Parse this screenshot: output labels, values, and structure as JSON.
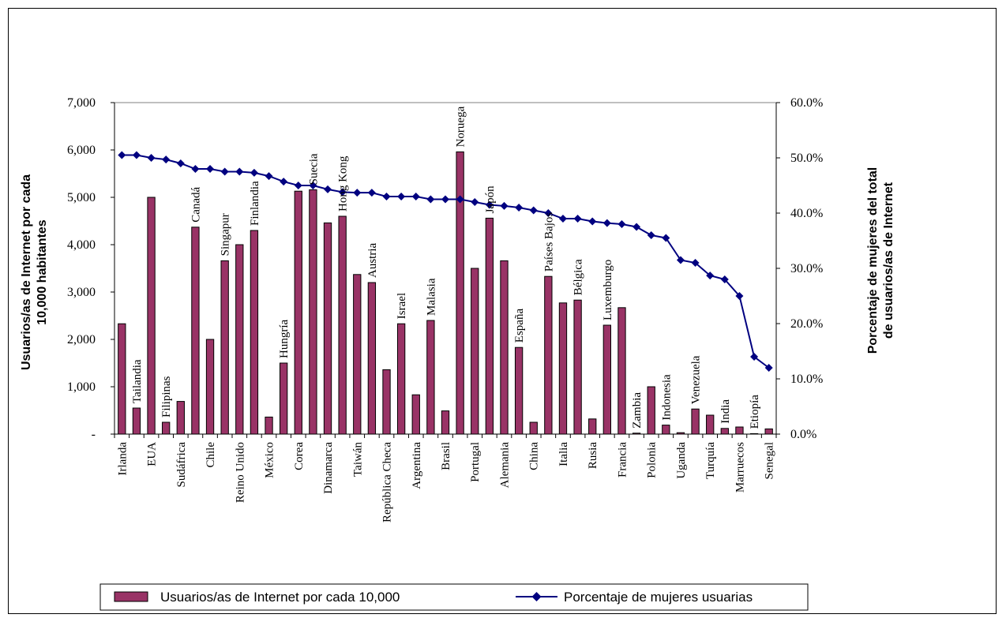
{
  "colors": {
    "bar": "#993366",
    "bar_stroke": "#000000",
    "line": "#000080",
    "axis": "#000000",
    "grid": "#808080"
  },
  "chart_data": {
    "type": "bar",
    "title": "",
    "ylabel": "Usuarios/as de Internet por cada 10,000 habitantes",
    "y2label": "Porcentaje de mujeres del total de usuarios/as de Internet",
    "ylim": [
      0,
      7000
    ],
    "y2lim": [
      0,
      0.6
    ],
    "y_ticks": [
      "-",
      "1,000",
      "2,000",
      "3,000",
      "4,000",
      "5,000",
      "6,000",
      "7,000"
    ],
    "y2_ticks": [
      "0.0%",
      "10.0%",
      "20.0%",
      "30.0%",
      "40.0%",
      "50.0%",
      "60.0%"
    ],
    "grid": "top-line-only",
    "legend_position": "bottom",
    "categories": [
      "Irlanda",
      "Tailandia",
      "EUA",
      "Filipinas",
      "Sudáfrica",
      "Canadá",
      "Chile",
      "Singapur",
      "Reino Unido",
      "Finlandia",
      "México",
      "Hungría",
      "Corea",
      "Suecia",
      "Dinamarca",
      "Hong Kong",
      "Taiwán",
      "Austria",
      "República Checa",
      "Israel",
      "Argentina",
      "Malasia",
      "Brasil",
      "Noruega",
      "Portugal",
      "Japón",
      "Alemania",
      "España",
      "China",
      "Países Bajos",
      "Italia",
      "Bélgica",
      "Rusia",
      "Luxemburgo",
      "Francia",
      "Zambia",
      "Polonia",
      "Indonesia",
      "Uganda",
      "Venezuela",
      "Turquía",
      "India",
      "Marruecos",
      "Etiopía",
      "Senegal"
    ],
    "label_position": [
      "below",
      "above",
      "below",
      "above",
      "below",
      "above",
      "below",
      "above",
      "below",
      "above",
      "below",
      "above",
      "below",
      "above",
      "below",
      "above",
      "below",
      "above",
      "below",
      "above",
      "below",
      "above",
      "below",
      "above",
      "below",
      "above",
      "below",
      "above",
      "below",
      "above",
      "below",
      "above",
      "below",
      "above",
      "below",
      "above",
      "below",
      "above",
      "below",
      "above",
      "below",
      "above",
      "below",
      "above",
      "below"
    ],
    "series": [
      {
        "name": "Usuarios/as de Internet por cada 10,000",
        "type": "bar",
        "axis": "left",
        "values": [
          2330,
          550,
          5000,
          250,
          690,
          4370,
          2000,
          3660,
          4000,
          4300,
          360,
          1500,
          5130,
          5160,
          4460,
          4600,
          3370,
          3200,
          1360,
          2330,
          830,
          2400,
          490,
          5960,
          3500,
          4560,
          3660,
          1830,
          250,
          3330,
          2770,
          2830,
          320,
          2300,
          2670,
          20,
          1000,
          190,
          30,
          530,
          400,
          120,
          150,
          10,
          110
        ]
      },
      {
        "name": "Porcentaje de mujeres usuarias",
        "type": "line",
        "axis": "right",
        "values": [
          0.505,
          0.505,
          0.5,
          0.497,
          0.49,
          0.48,
          0.48,
          0.475,
          0.475,
          0.473,
          0.467,
          0.457,
          0.45,
          0.45,
          0.443,
          0.438,
          0.437,
          0.437,
          0.43,
          0.43,
          0.43,
          0.425,
          0.425,
          0.425,
          0.42,
          0.415,
          0.413,
          0.41,
          0.405,
          0.4,
          0.39,
          0.39,
          0.385,
          0.382,
          0.38,
          0.375,
          0.36,
          0.355,
          0.315,
          0.31,
          0.287,
          0.28,
          0.25,
          0.14,
          0.12
        ]
      }
    ]
  }
}
